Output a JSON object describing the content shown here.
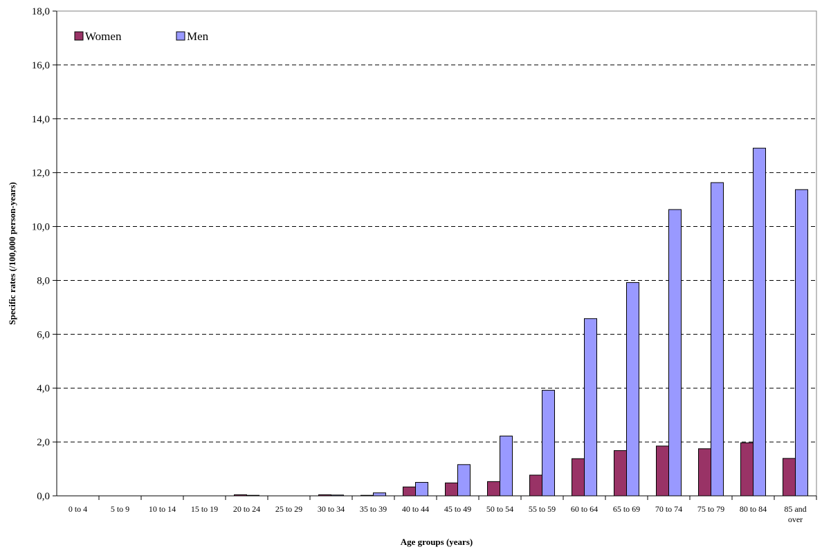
{
  "chart_data": {
    "type": "bar",
    "title": "",
    "xlabel": "Age groups (years)",
    "ylabel": "Specific rates (/100,000 person-years)",
    "ylim": [
      0,
      18
    ],
    "yticks": [
      "0,0",
      "2,0",
      "4,0",
      "6,0",
      "8,0",
      "10,0",
      "12,0",
      "14,0",
      "16,0",
      "18,0"
    ],
    "grid": true,
    "legend_position": "top-left",
    "categories": [
      [
        "0 to 4"
      ],
      [
        "5 to 9"
      ],
      [
        "10 to 14"
      ],
      [
        "15 to 19"
      ],
      [
        "20 to 24"
      ],
      [
        "25 to 29"
      ],
      [
        "30 to 34"
      ],
      [
        "35 to 39"
      ],
      [
        "40 to 44"
      ],
      [
        "45 to 49"
      ],
      [
        "50 to 54"
      ],
      [
        "55 to 59"
      ],
      [
        "60 to 64"
      ],
      [
        "65 to 69"
      ],
      [
        "70 to 74"
      ],
      [
        "75 to 79"
      ],
      [
        "80 to 84"
      ],
      [
        "85 and",
        "over"
      ]
    ],
    "series": [
      {
        "name": "Women",
        "color": "#993366",
        "values": [
          0,
          0,
          0,
          0,
          0.04,
          0.01,
          0.04,
          0.02,
          0.33,
          0.48,
          0.53,
          0.77,
          1.38,
          1.68,
          1.85,
          1.75,
          1.97,
          1.39
        ]
      },
      {
        "name": "Men",
        "color": "#9999FF",
        "values": [
          0,
          0,
          0,
          0,
          0.02,
          0.01,
          0.03,
          0.11,
          0.5,
          1.16,
          2.22,
          3.92,
          6.58,
          7.92,
          10.63,
          11.63,
          12.91,
          11.37
        ]
      }
    ]
  }
}
